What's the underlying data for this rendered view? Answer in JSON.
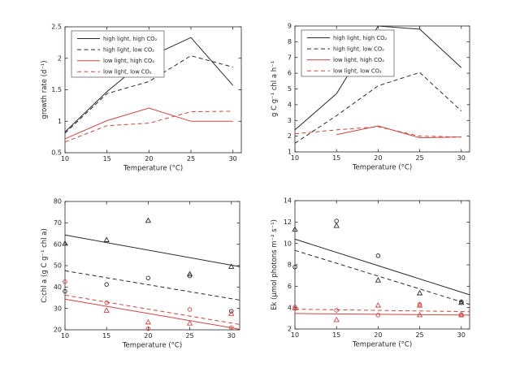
{
  "palette": {
    "background": "#ffffff",
    "axis_ink": "#262626",
    "high_light_series": "#2b2b2b",
    "low_light_series": "#cc4641",
    "legend_border": "#545454"
  },
  "legend": {
    "entries": [
      {
        "label": "high light, high CO₂",
        "color": "#2b2b2b",
        "dash": false
      },
      {
        "label": "high light, low CO₂",
        "color": "#2b2b2b",
        "dash": true
      },
      {
        "label": "low light, high CO₂",
        "color": "#cc4641",
        "dash": false
      },
      {
        "label": "low light, low CO₂",
        "color": "#cc4641",
        "dash": true
      }
    ]
  },
  "chart_data": [
    {
      "id": "growth-rate",
      "type": "line",
      "title": "",
      "xlabel": "Temperature (°C)",
      "ylabel": "growth rate (d⁻¹)",
      "xlim": [
        10,
        31
      ],
      "ylim": [
        0.5,
        2.5
      ],
      "xticks": [
        10,
        15,
        20,
        25,
        30
      ],
      "yticks": [
        0.5,
        1,
        1.5,
        2,
        2.5
      ],
      "grid": false,
      "legend": true,
      "legend_position": "upper-left",
      "series": [
        {
          "name": "high light, high CO₂",
          "color": "#2b2b2b",
          "dash": false,
          "x": [
            10,
            15,
            20,
            25,
            30
          ],
          "y": [
            0.83,
            1.47,
            2.02,
            2.33,
            1.57
          ]
        },
        {
          "name": "high light, low CO₂",
          "color": "#2b2b2b",
          "dash": true,
          "x": [
            10,
            15,
            20,
            25,
            30
          ],
          "y": [
            0.81,
            1.44,
            1.63,
            2.04,
            1.86
          ]
        },
        {
          "name": "low light, high CO₂",
          "color": "#cc4641",
          "dash": false,
          "x": [
            10,
            15,
            20,
            25,
            30
          ],
          "y": [
            0.72,
            1.01,
            1.21,
            1.0,
            1.0
          ]
        },
        {
          "name": "low light, low CO₂",
          "color": "#cc4641",
          "dash": true,
          "x": [
            10,
            15,
            20,
            25,
            30
          ],
          "y": [
            0.67,
            0.93,
            0.97,
            1.15,
            1.16
          ]
        }
      ],
      "points": []
    },
    {
      "id": "carbon-fixation",
      "type": "line",
      "title": "",
      "xlabel": "Temperature (°C)",
      "ylabel": "g C g⁻¹ chl a h⁻¹",
      "xlim": [
        10,
        31
      ],
      "ylim": [
        1,
        9
      ],
      "xticks": [
        10,
        15,
        20,
        25,
        30
      ],
      "yticks": [
        1,
        2,
        3,
        4,
        5,
        6,
        7,
        8,
        9
      ],
      "grid": false,
      "legend": true,
      "legend_position": "upper-left",
      "series": [
        {
          "name": "high light, high CO₂",
          "color": "#2b2b2b",
          "dash": false,
          "x": [
            10,
            15,
            20,
            25,
            30
          ],
          "y": [
            2.4,
            4.7,
            9.0,
            8.8,
            6.35
          ]
        },
        {
          "name": "high light, low CO₂",
          "color": "#2b2b2b",
          "dash": true,
          "x": [
            10,
            15,
            20,
            25,
            30
          ],
          "y": [
            1.55,
            3.3,
            5.2,
            6.05,
            3.6
          ]
        },
        {
          "name": "low light, high CO₂",
          "color": "#cc4641",
          "dash": false,
          "x": [
            15,
            20,
            25,
            30
          ],
          "y": [
            2.1,
            2.65,
            1.9,
            1.95
          ]
        },
        {
          "name": "low light, low CO₂",
          "color": "#cc4641",
          "dash": true,
          "x": [
            10,
            15,
            20,
            25,
            30
          ],
          "y": [
            2.15,
            2.4,
            2.6,
            2.0,
            1.95
          ]
        }
      ],
      "points": []
    },
    {
      "id": "c-to-chl-ratio",
      "type": "scatter",
      "title": "",
      "xlabel": "Temperature (°C)",
      "ylabel": "C:chl a (g C g⁻¹ chl a)",
      "xlim": [
        10,
        31
      ],
      "ylim": [
        20,
        80
      ],
      "xticks": [
        10,
        15,
        20,
        25,
        30
      ],
      "yticks": [
        20,
        30,
        40,
        50,
        60,
        70,
        80
      ],
      "grid": false,
      "legend": false,
      "series": [
        {
          "name": "high light, high CO₂ fit",
          "color": "#2b2b2b",
          "dash": false,
          "x": [
            10,
            31
          ],
          "y": [
            64.3,
            49.5
          ]
        },
        {
          "name": "high light, low CO₂ fit",
          "color": "#2b2b2b",
          "dash": true,
          "x": [
            10,
            31
          ],
          "y": [
            47.6,
            33.9
          ]
        },
        {
          "name": "low light, high CO₂ fit",
          "color": "#cc4641",
          "dash": false,
          "x": [
            10,
            31
          ],
          "y": [
            34.3,
            20.3
          ]
        },
        {
          "name": "low light, low CO₂ fit",
          "color": "#cc4641",
          "dash": true,
          "x": [
            10,
            31
          ],
          "y": [
            36.2,
            22.5
          ]
        }
      ],
      "points": [
        {
          "label": "high light, triangle markers",
          "marker": "triangle",
          "color": "#2b2b2b",
          "x": [
            10,
            15,
            20,
            25,
            30
          ],
          "y": [
            60.3,
            62.0,
            71.0,
            46.0,
            49.5
          ]
        },
        {
          "label": "high light, circle markers",
          "marker": "circle",
          "color": "#2b2b2b",
          "x": [
            10,
            15,
            20,
            25,
            30
          ],
          "y": [
            38.0,
            41.2,
            44.2,
            45.2,
            28.7
          ]
        },
        {
          "label": "low light, circle markers",
          "marker": "circle",
          "color": "#cc4641",
          "x": [
            10,
            15,
            20,
            25,
            30
          ],
          "y": [
            42.5,
            32.7,
            20.5,
            29.5,
            21.0
          ]
        },
        {
          "label": "low light, triangle markers",
          "marker": "triangle",
          "color": "#cc4641",
          "x": [
            15,
            20,
            25,
            30
          ],
          "y": [
            29.0,
            23.5,
            23.0,
            27.5
          ]
        }
      ]
    },
    {
      "id": "ek-light-saturation",
      "type": "scatter",
      "title": "",
      "xlabel": "Temperature (°C)",
      "ylabel": "Ek (μmol photons m⁻² s⁻¹)",
      "xlim": [
        10,
        31
      ],
      "ylim": [
        2,
        14
      ],
      "xticks": [
        10,
        15,
        20,
        25,
        30
      ],
      "yticks": [
        2,
        4,
        6,
        8,
        10,
        12,
        14
      ],
      "grid": false,
      "legend": false,
      "series": [
        {
          "name": "high light, high CO₂ fit",
          "color": "#2b2b2b",
          "dash": false,
          "x": [
            10,
            31
          ],
          "y": [
            10.4,
            5.2
          ]
        },
        {
          "name": "high light, low CO₂ fit",
          "color": "#2b2b2b",
          "dash": true,
          "x": [
            10,
            31
          ],
          "y": [
            9.35,
            4.3
          ]
        },
        {
          "name": "low light, high CO₂ fit",
          "color": "#cc4641",
          "dash": false,
          "x": [
            10,
            31
          ],
          "y": [
            3.45,
            3.3
          ]
        },
        {
          "name": "low light, low CO₂ fit",
          "color": "#cc4641",
          "dash": true,
          "x": [
            10,
            31
          ],
          "y": [
            3.85,
            3.62
          ]
        }
      ],
      "points": [
        {
          "label": "high light, triangle markers",
          "marker": "triangle",
          "color": "#2b2b2b",
          "x": [
            10,
            15,
            20,
            25,
            30
          ],
          "y": [
            11.3,
            11.65,
            6.55,
            5.35,
            4.45
          ]
        },
        {
          "label": "high light, circle markers",
          "marker": "circle",
          "color": "#2b2b2b",
          "x": [
            10,
            15,
            20,
            30
          ],
          "y": [
            7.8,
            12.1,
            8.85,
            4.55
          ]
        },
        {
          "label": "low light, circle markers",
          "marker": "circle",
          "color": "#cc4641",
          "x": [
            10,
            15,
            20,
            25,
            30
          ],
          "y": [
            4.05,
            3.75,
            3.3,
            4.3,
            3.35
          ]
        },
        {
          "label": "low light, triangle markers",
          "marker": "triangle",
          "color": "#cc4641",
          "x": [
            10,
            15,
            20,
            25,
            25,
            30
          ],
          "y": [
            3.95,
            2.85,
            4.2,
            4.2,
            3.3,
            3.3
          ]
        }
      ]
    }
  ]
}
